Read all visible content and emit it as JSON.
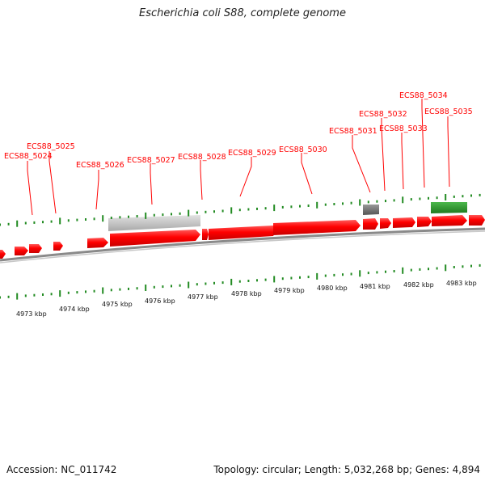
{
  "title": "Escherichia coli S88, complete genome",
  "footer": {
    "accession": "Accession: NC_011742",
    "summary": "Topology: circular; Length: 5,032,268 bp; Genes: 4,894"
  },
  "colors": {
    "gene_forward": "#ff0000",
    "gene_pseudo": "#b8b8b8",
    "gene_dark": "#666666",
    "gene_rna": "#2e8b2e",
    "tick": "#228b22",
    "label": "#ff0000",
    "backbone": "#888888"
  },
  "kbp_labels": [
    "4973 kbp",
    "4974 kbp",
    "4975 kbp",
    "4976 kbp",
    "4977 kbp",
    "4978 kbp",
    "4979 kbp",
    "4980 kbp",
    "4981 kbp",
    "4982 kbp",
    "4983 kbp"
  ],
  "gene_labels": [
    "ECS88_5024",
    "ECS88_5025",
    "ECS88_5026",
    "ECS88_5027",
    "ECS88_5028",
    "ECS88_5029",
    "ECS88_5030",
    "ECS88_5031",
    "ECS88_5032",
    "ECS88_5033",
    "ECS88_5034",
    "ECS88_5035"
  ]
}
